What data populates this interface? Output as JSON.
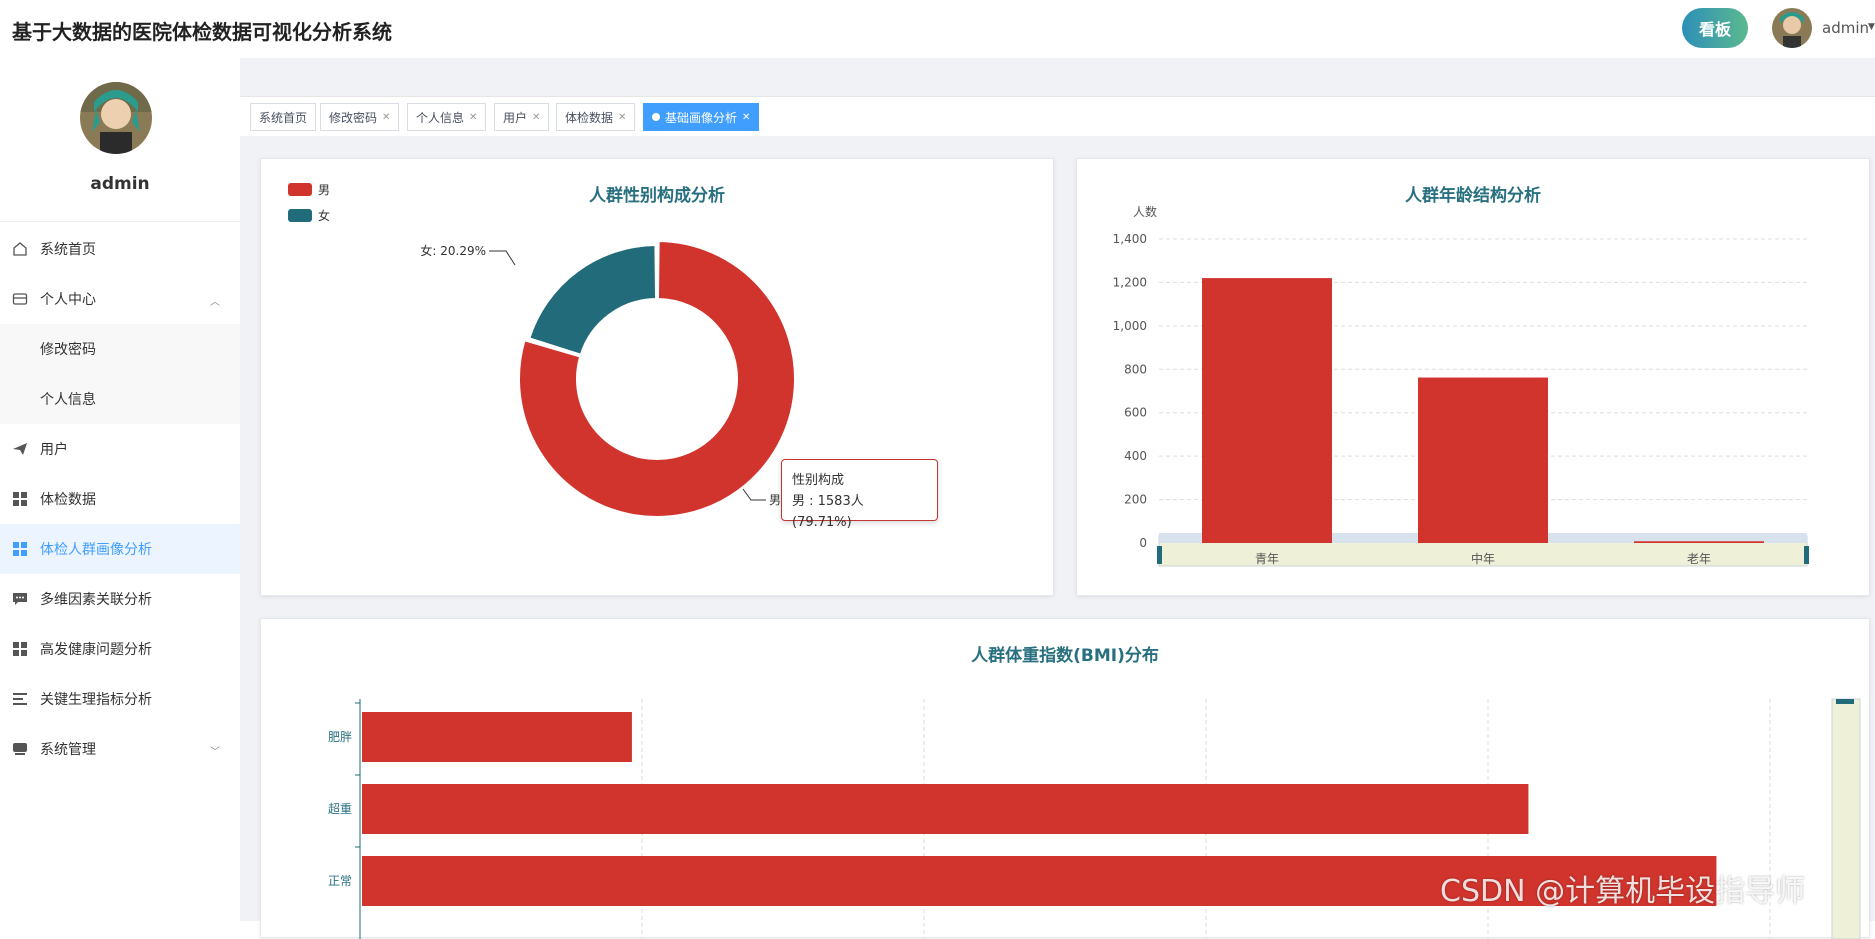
{
  "header": {
    "title": "基于大数据的医院体检数据可视化分析系统",
    "kanban_label": "看板",
    "username": "admin"
  },
  "sidebar": {
    "username": "admin",
    "items": [
      {
        "label": "系统首页",
        "icon": "home-icon"
      },
      {
        "label": "个人中心",
        "icon": "wallet-icon"
      },
      {
        "label": "修改密码"
      },
      {
        "label": "个人信息"
      },
      {
        "label": "用户",
        "icon": "send-icon"
      },
      {
        "label": "体检数据",
        "icon": "grid-icon"
      },
      {
        "label": "体检人群画像分析",
        "icon": "grid-icon"
      },
      {
        "label": "多维因素关联分析",
        "icon": "chat-icon"
      },
      {
        "label": "高发健康问题分析",
        "icon": "grid-icon"
      },
      {
        "label": "关键生理指标分析",
        "icon": "list-icon"
      },
      {
        "label": "系统管理",
        "icon": "drive-icon"
      }
    ]
  },
  "tabs": [
    {
      "label": "系统首页"
    },
    {
      "label": "修改密码"
    },
    {
      "label": "个人信息"
    },
    {
      "label": "用户"
    },
    {
      "label": "体检数据"
    },
    {
      "label": "基础画像分析"
    }
  ],
  "colors": {
    "red": "#d0342c",
    "teal": "#216b7a",
    "active": "#409eff"
  },
  "chart_data": [
    {
      "type": "pie",
      "title": "人群性别构成分析",
      "legend": [
        "男",
        "女"
      ],
      "slices": [
        {
          "name": "男",
          "value": 1583,
          "percent": 79.71
        },
        {
          "name": "女",
          "percent": 20.29
        }
      ],
      "labels": {
        "female": "女: 20.29%",
        "male": "男"
      },
      "tooltip": {
        "title": "性别构成",
        "body": "男 : 1583人 (79.71%)"
      }
    },
    {
      "type": "bar",
      "title": "人群年龄结构分析",
      "ylabel": "人数",
      "categories": [
        "青年",
        "中年",
        "老年"
      ],
      "values": [
        1220,
        762,
        8
      ],
      "yticks": [
        "0",
        "200",
        "400",
        "600",
        "800",
        "1,000",
        "1,200",
        "1,400"
      ],
      "ylim": [
        0,
        1400
      ],
      "grid": true
    },
    {
      "type": "bar",
      "orientation": "horizontal",
      "title": "人群体重指数(BMI)分布",
      "categories": [
        "肥胖",
        "超重",
        "正常"
      ],
      "values": [
        280,
        1210,
        1405
      ],
      "grid": true
    }
  ],
  "watermark": "CSDN @计算机毕设指导师"
}
